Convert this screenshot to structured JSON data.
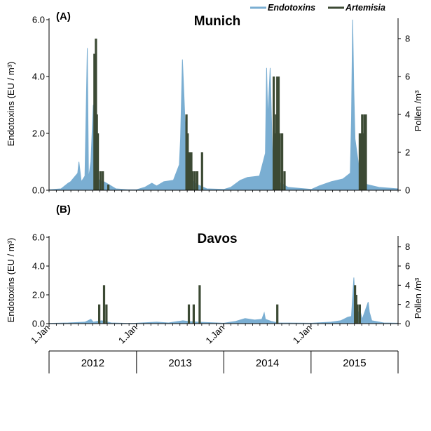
{
  "legend": {
    "endotoxins": "Endotoxins",
    "artemisia": "Artemisia",
    "placement": "top-right"
  },
  "colors": {
    "endotoxins": "#7aaed2",
    "artemisia": "#3c4a34"
  },
  "chart_data": [
    {
      "type": "area",
      "panel_label": "(A)",
      "title": "Munich",
      "ylabel_left": "Endotoxins (EU / m³)",
      "ylabel_right": "Pollen /m³",
      "ylim_left": [
        0,
        6
      ],
      "yticks_left": [
        "0.0",
        "2.0",
        "4.0",
        "6.0"
      ],
      "ylim_right": [
        0,
        9
      ],
      "yticks_right": [
        "0",
        "2",
        "4",
        "6",
        "8"
      ],
      "x_unit": "days since 1 Jan 2012",
      "xlim": [
        0,
        1460
      ],
      "series": [
        {
          "name": "Endotoxins",
          "axis": "left",
          "points": [
            [
              0,
              0.02
            ],
            [
              50,
              0.05
            ],
            [
              80,
              0.25
            ],
            [
              90,
              0.3
            ],
            [
              120,
              0.6
            ],
            [
              125,
              1.0
            ],
            [
              135,
              0.3
            ],
            [
              150,
              0.5
            ],
            [
              160,
              5.0
            ],
            [
              165,
              0.4
            ],
            [
              175,
              1.0
            ],
            [
              185,
              3.0
            ],
            [
              195,
              0.5
            ],
            [
              210,
              0.35
            ],
            [
              230,
              0.3
            ],
            [
              250,
              0.2
            ],
            [
              280,
              0.05
            ],
            [
              330,
              0.02
            ],
            [
              366,
              0.02
            ],
            [
              400,
              0.1
            ],
            [
              430,
              0.25
            ],
            [
              450,
              0.15
            ],
            [
              480,
              0.3
            ],
            [
              520,
              0.35
            ],
            [
              545,
              0.9
            ],
            [
              550,
              1.8
            ],
            [
              558,
              4.6
            ],
            [
              562,
              3.8
            ],
            [
              568,
              2.6
            ],
            [
              575,
              0.8
            ],
            [
              590,
              0.4
            ],
            [
              620,
              0.2
            ],
            [
              660,
              0.05
            ],
            [
              731,
              0.03
            ],
            [
              760,
              0.1
            ],
            [
              800,
              0.35
            ],
            [
              830,
              0.45
            ],
            [
              880,
              0.5
            ],
            [
              905,
              1.3
            ],
            [
              910,
              4.3
            ],
            [
              915,
              2.5
            ],
            [
              925,
              4.3
            ],
            [
              935,
              1.0
            ],
            [
              960,
              0.3
            ],
            [
              1000,
              0.1
            ],
            [
              1097,
              0.03
            ],
            [
              1130,
              0.15
            ],
            [
              1180,
              0.3
            ],
            [
              1230,
              0.4
            ],
            [
              1260,
              0.6
            ],
            [
              1265,
              2.5
            ],
            [
              1270,
              6.0
            ],
            [
              1275,
              3.5
            ],
            [
              1280,
              1.8
            ],
            [
              1300,
              0.6
            ],
            [
              1330,
              0.2
            ],
            [
              1380,
              0.1
            ],
            [
              1460,
              0.05
            ]
          ]
        },
        {
          "name": "Artemisia",
          "axis": "right",
          "bars": [
            [
              190,
              7.2
            ],
            [
              196,
              8.0
            ],
            [
              200,
              4.0
            ],
            [
              204,
              3.0
            ],
            [
              215,
              1.0
            ],
            [
              225,
              1.0
            ],
            [
              248,
              0.3
            ],
            [
              575,
              4.0
            ],
            [
              580,
              3.0
            ],
            [
              586,
              2.0
            ],
            [
              590,
              1.0
            ],
            [
              595,
              2.0
            ],
            [
              600,
              1.0
            ],
            [
              610,
              1.0
            ],
            [
              620,
              1.0
            ],
            [
              640,
              2.0
            ],
            [
              940,
              6.0
            ],
            [
              945,
              3.0
            ],
            [
              950,
              4.0
            ],
            [
              955,
              6.0
            ],
            [
              960,
              6.0
            ],
            [
              965,
              3.0
            ],
            [
              975,
              3.0
            ],
            [
              985,
              1.0
            ],
            [
              1300,
              3.0
            ],
            [
              1305,
              3.0
            ],
            [
              1310,
              4.0
            ],
            [
              1315,
              3.0
            ],
            [
              1320,
              4.0
            ],
            [
              1325,
              4.0
            ]
          ]
        }
      ]
    },
    {
      "type": "area",
      "panel_label": "(B)",
      "title": "Davos",
      "ylabel_left": "Endotoxins (EU / m³)",
      "ylabel_right": "Pollen /m³",
      "ylim_left": [
        0,
        6
      ],
      "yticks_left": [
        "0.0",
        "2.0",
        "4.0",
        "6.0"
      ],
      "ylim_right": [
        0,
        9
      ],
      "yticks_right": [
        "0",
        "2",
        "4",
        "6",
        "8"
      ],
      "x_unit": "days since 1 Jan 2012",
      "xlim": [
        0,
        1460
      ],
      "xticks": [
        "1.Jan",
        "1.Jan",
        "1.Jan",
        "1.Jan"
      ],
      "years": [
        "2012",
        "2013",
        "2014",
        "2015"
      ],
      "series": [
        {
          "name": "Endotoxins",
          "axis": "left",
          "points": [
            [
              0,
              0.02
            ],
            [
              80,
              0.05
            ],
            [
              150,
              0.1
            ],
            [
              175,
              0.3
            ],
            [
              185,
              0.1
            ],
            [
              220,
              0.2
            ],
            [
              260,
              0.05
            ],
            [
              330,
              0.02
            ],
            [
              366,
              0.03
            ],
            [
              450,
              0.1
            ],
            [
              500,
              0.05
            ],
            [
              560,
              0.2
            ],
            [
              580,
              0.15
            ],
            [
              620,
              0.1
            ],
            [
              731,
              0.03
            ],
            [
              780,
              0.15
            ],
            [
              820,
              0.35
            ],
            [
              860,
              0.25
            ],
            [
              890,
              0.3
            ],
            [
              900,
              0.75
            ],
            [
              905,
              0.3
            ],
            [
              930,
              0.15
            ],
            [
              960,
              0.05
            ],
            [
              1097,
              0.03
            ],
            [
              1180,
              0.1
            ],
            [
              1220,
              0.2
            ],
            [
              1250,
              0.45
            ],
            [
              1265,
              0.5
            ],
            [
              1275,
              3.2
            ],
            [
              1280,
              1.6
            ],
            [
              1290,
              0.5
            ],
            [
              1300,
              1.0
            ],
            [
              1310,
              0.3
            ],
            [
              1335,
              1.5
            ],
            [
              1340,
              0.8
            ],
            [
              1350,
              0.2
            ],
            [
              1400,
              0.05
            ],
            [
              1460,
              0.03
            ]
          ]
        },
        {
          "name": "Artemisia",
          "axis": "right",
          "bars": [
            [
              210,
              2.0
            ],
            [
              230,
              4.0
            ],
            [
              240,
              2.0
            ],
            [
              585,
              2.0
            ],
            [
              605,
              2.0
            ],
            [
              630,
              4.0
            ],
            [
              955,
              2.0
            ],
            [
              1280,
              4.0
            ],
            [
              1285,
              3.0
            ],
            [
              1290,
              2.0
            ],
            [
              1300,
              2.0
            ]
          ]
        }
      ]
    }
  ]
}
